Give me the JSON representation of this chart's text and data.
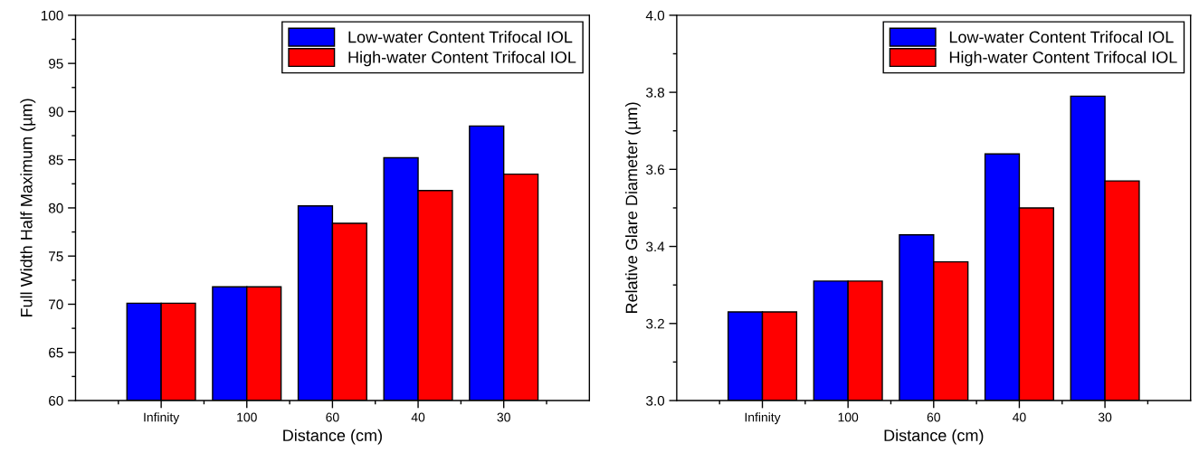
{
  "chart_data": [
    {
      "type": "bar",
      "xlabel": "Distance (cm)",
      "ylabel": "Full Width Half Maximum (µm)",
      "categories": [
        "Infinity",
        "100",
        "60",
        "40",
        "30"
      ],
      "series": [
        {
          "name": "Low-water Content Trifocal IOL",
          "color": "#0000ff",
          "values": [
            70.1,
            71.8,
            80.2,
            85.2,
            88.5
          ]
        },
        {
          "name": "High-water Content Trifocal IOL",
          "color": "#ff0000",
          "values": [
            70.1,
            71.8,
            78.4,
            81.8,
            83.5
          ]
        }
      ],
      "ylim": [
        60,
        100
      ],
      "yticks": [
        60,
        65,
        70,
        75,
        80,
        85,
        90,
        95,
        100
      ],
      "grid": false,
      "legend": "top right"
    },
    {
      "type": "bar",
      "xlabel": "Distance (cm)",
      "ylabel": "Relative Glare Diameter (µm)",
      "categories": [
        "Infinity",
        "100",
        "60",
        "40",
        "30"
      ],
      "series": [
        {
          "name": "Low-water Content Trifocal IOL",
          "color": "#0000ff",
          "values": [
            3.23,
            3.31,
            3.43,
            3.64,
            3.79
          ]
        },
        {
          "name": "High-water Content Trifocal IOL",
          "color": "#ff0000",
          "values": [
            3.23,
            3.31,
            3.36,
            3.5,
            3.57
          ]
        }
      ],
      "ylim": [
        3.0,
        4.0
      ],
      "yticks": [
        {
          "value": 3.0,
          "label": "3.0"
        },
        {
          "value": 3.2,
          "label": "3.2"
        },
        {
          "value": 3.4,
          "label": "3.4"
        },
        {
          "value": 3.6,
          "label": "3.6"
        },
        {
          "value": 3.8,
          "label": "3.8"
        },
        {
          "value": 4.0,
          "label": "4.0"
        }
      ],
      "grid": false,
      "legend": "top right"
    }
  ]
}
